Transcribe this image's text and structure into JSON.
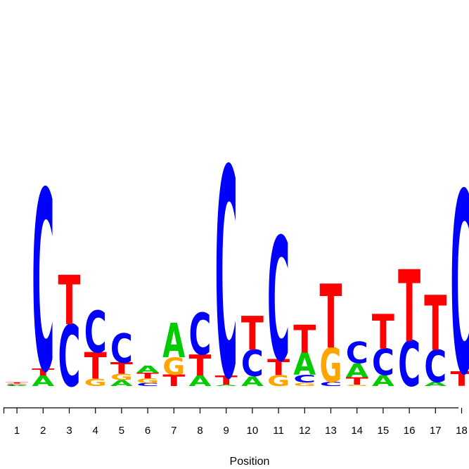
{
  "chart_data": {
    "type": "sequence-logo",
    "xlabel": "Position",
    "letters": [
      "A",
      "C",
      "G",
      "T"
    ],
    "colors": {
      "A": "#00cc00",
      "C": "#0000ff",
      "G": "#ffa500",
      "T": "#ff0000"
    },
    "positions": [
      {
        "pos": "1",
        "stack": [
          {
            "l": "A",
            "v": 0.002
          },
          {
            "l": "C",
            "v": 0.002
          },
          {
            "l": "G",
            "v": 0.003
          },
          {
            "l": "T",
            "v": 0.003
          }
        ]
      },
      {
        "pos": "2",
        "stack": [
          {
            "l": "A",
            "v": 0.028
          },
          {
            "l": "T",
            "v": 0.018
          },
          {
            "l": "C",
            "v": 0.484
          }
        ]
      },
      {
        "pos": "3",
        "stack": [
          {
            "l": "C",
            "v": 0.166
          },
          {
            "l": "T",
            "v": 0.133
          }
        ]
      },
      {
        "pos": "4",
        "stack": [
          {
            "l": "G",
            "v": 0.02
          },
          {
            "l": "T",
            "v": 0.071
          },
          {
            "l": "C",
            "v": 0.112
          }
        ]
      },
      {
        "pos": "5",
        "stack": [
          {
            "l": "A",
            "v": 0.016
          },
          {
            "l": "G",
            "v": 0.017
          },
          {
            "l": "T",
            "v": 0.03
          },
          {
            "l": "C",
            "v": 0.079
          }
        ]
      },
      {
        "pos": "6",
        "stack": [
          {
            "l": "C",
            "v": 0.008
          },
          {
            "l": "G",
            "v": 0.013
          },
          {
            "l": "T",
            "v": 0.015
          },
          {
            "l": "A",
            "v": 0.018
          }
        ]
      },
      {
        "pos": "7",
        "stack": [
          {
            "l": "T",
            "v": 0.03
          },
          {
            "l": "G",
            "v": 0.047
          },
          {
            "l": "A",
            "v": 0.092
          }
        ]
      },
      {
        "pos": "8",
        "stack": [
          {
            "l": "A",
            "v": 0.028
          },
          {
            "l": "T",
            "v": 0.057
          },
          {
            "l": "C",
            "v": 0.112
          }
        ]
      },
      {
        "pos": "9",
        "stack": [
          {
            "l": "A",
            "v": 0.004
          },
          {
            "l": "T",
            "v": 0.025
          },
          {
            "l": "C",
            "v": 0.562
          }
        ]
      },
      {
        "pos": "10",
        "stack": [
          {
            "l": "A",
            "v": 0.026
          },
          {
            "l": "C",
            "v": 0.071
          },
          {
            "l": "T",
            "v": 0.091
          }
        ]
      },
      {
        "pos": "11",
        "stack": [
          {
            "l": "G",
            "v": 0.029
          },
          {
            "l": "T",
            "v": 0.043
          },
          {
            "l": "C",
            "v": 0.331
          }
        ]
      },
      {
        "pos": "12",
        "stack": [
          {
            "l": "G",
            "v": 0.009
          },
          {
            "l": "C",
            "v": 0.021
          },
          {
            "l": "A",
            "v": 0.06
          },
          {
            "l": "T",
            "v": 0.075
          }
        ]
      },
      {
        "pos": "13",
        "stack": [
          {
            "l": "C",
            "v": 0.011
          },
          {
            "l": "G",
            "v": 0.092
          },
          {
            "l": "T",
            "v": 0.172
          }
        ]
      },
      {
        "pos": "14",
        "stack": [
          {
            "l": "G",
            "v": 0.004
          },
          {
            "l": "T",
            "v": 0.02
          },
          {
            "l": "A",
            "v": 0.037
          },
          {
            "l": "C",
            "v": 0.058
          }
        ]
      },
      {
        "pos": "15",
        "stack": [
          {
            "l": "A",
            "v": 0.029
          },
          {
            "l": "C",
            "v": 0.071
          },
          {
            "l": "T",
            "v": 0.093
          }
        ]
      },
      {
        "pos": "16",
        "stack": [
          {
            "l": "C",
            "v": 0.121
          },
          {
            "l": "T",
            "v": 0.193
          }
        ]
      },
      {
        "pos": "17",
        "stack": [
          {
            "l": "A",
            "v": 0.011
          },
          {
            "l": "C",
            "v": 0.086
          },
          {
            "l": "T",
            "v": 0.148
          }
        ]
      },
      {
        "pos": "18",
        "stack": [
          {
            "l": "T",
            "v": 0.039
          },
          {
            "l": "C",
            "v": 0.487
          }
        ]
      }
    ]
  }
}
